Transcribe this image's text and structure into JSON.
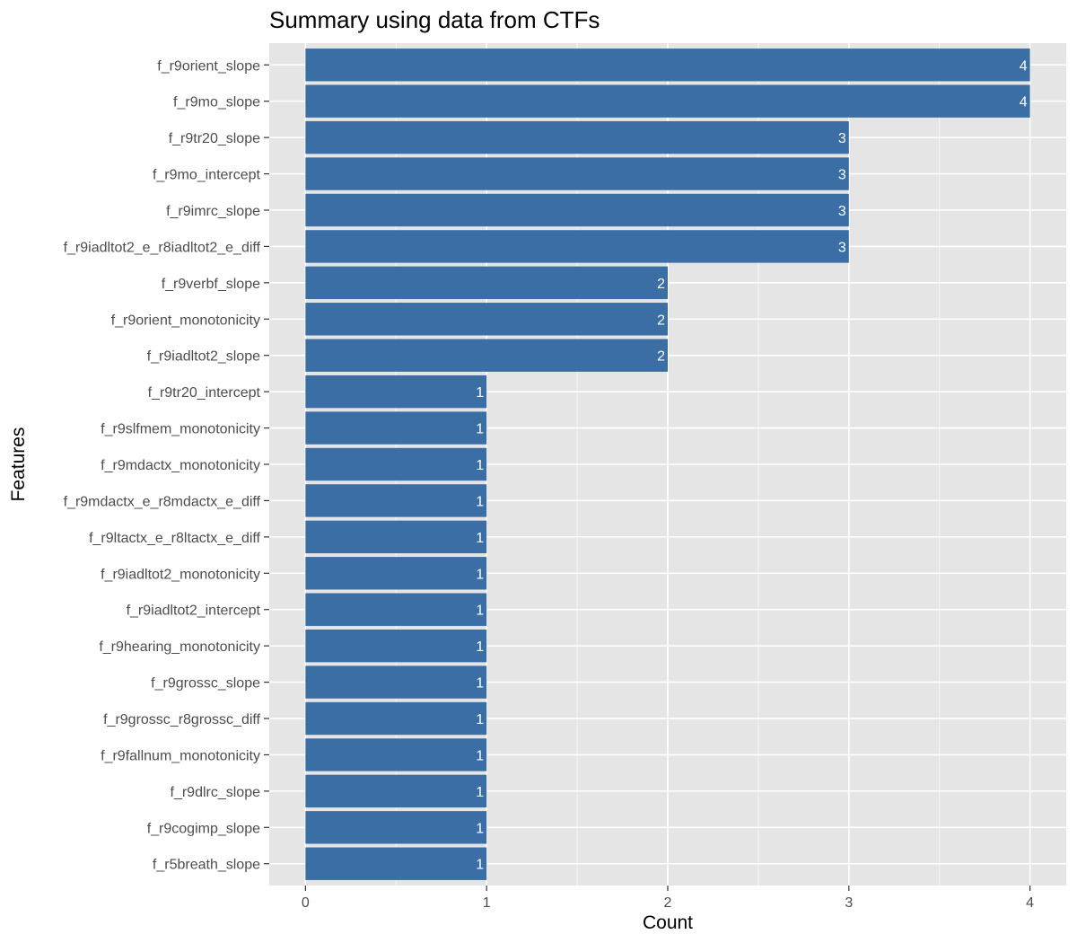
{
  "chart_data": {
    "type": "bar",
    "orientation": "horizontal",
    "title": "Summary using data from CTFs",
    "xlabel": "Count",
    "ylabel": "Features",
    "xlim": [
      0,
      4
    ],
    "x_ticks": [
      0,
      1,
      2,
      3,
      4
    ],
    "grid": true,
    "legend": "none",
    "bar_color": "#3A6EA5",
    "panel_color": "#E5E5E5",
    "categories": [
      "f_r9orient_slope",
      "f_r9mo_slope",
      "f_r9tr20_slope",
      "f_r9mo_intercept",
      "f_r9imrc_slope",
      "f_r9iadltot2_e_r8iadltot2_e_diff",
      "f_r9verbf_slope",
      "f_r9orient_monotonicity",
      "f_r9iadltot2_slope",
      "f_r9tr20_intercept",
      "f_r9slfmem_monotonicity",
      "f_r9mdactx_monotonicity",
      "f_r9mdactx_e_r8mdactx_e_diff",
      "f_r9ltactx_e_r8ltactx_e_diff",
      "f_r9iadltot2_monotonicity",
      "f_r9iadltot2_intercept",
      "f_r9hearing_monotonicity",
      "f_r9grossc_slope",
      "f_r9grossc_r8grossc_diff",
      "f_r9fallnum_monotonicity",
      "f_r9dlrc_slope",
      "f_r9cogimp_slope",
      "f_r5breath_slope"
    ],
    "values": [
      4,
      4,
      3,
      3,
      3,
      3,
      2,
      2,
      2,
      1,
      1,
      1,
      1,
      1,
      1,
      1,
      1,
      1,
      1,
      1,
      1,
      1,
      1
    ]
  }
}
